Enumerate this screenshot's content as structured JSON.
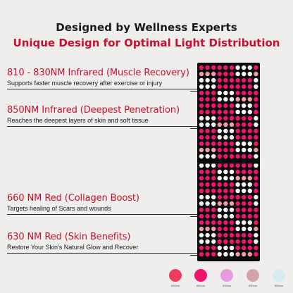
{
  "headline": {
    "line1": "Designed by Wellness Experts",
    "line2": "Unique Design for Optimal Light Distribution"
  },
  "features": [
    {
      "title": "810 - 830NM Infrared (Muscle Recovery)",
      "desc": "Supports faster muscle recovery after exercise or injury"
    },
    {
      "title": "850NM Infrared (Deepest Penetration)",
      "desc": "Reaches the deepest layers of skin and soft tissue"
    },
    {
      "title": "660 NM Red (Collagen Boost)",
      "desc": "Targets healing of Scars and wounds"
    },
    {
      "title": "630 NM Red (Skin Benefits)",
      "desc": "Restore Your Skin's Natural Glow and Recover"
    }
  ],
  "legend": [
    {
      "label": "630nm",
      "color": "#ee3b5a"
    },
    {
      "label": "660nm",
      "color": "#f0136f"
    },
    {
      "label": "810nm",
      "color": "#e69be0"
    },
    {
      "label": "830nm",
      "color": "#d4a2a9"
    },
    {
      "label": "850nm",
      "color": "#d6ecf1"
    }
  ],
  "colors": {
    "accent": "#c8102e",
    "panel": "#0b0b0c",
    "background": "#efeeec",
    "led_pink": "#f0136f",
    "led_white": "#f4f4f4",
    "led_light_pink": "#ee9fa6"
  }
}
